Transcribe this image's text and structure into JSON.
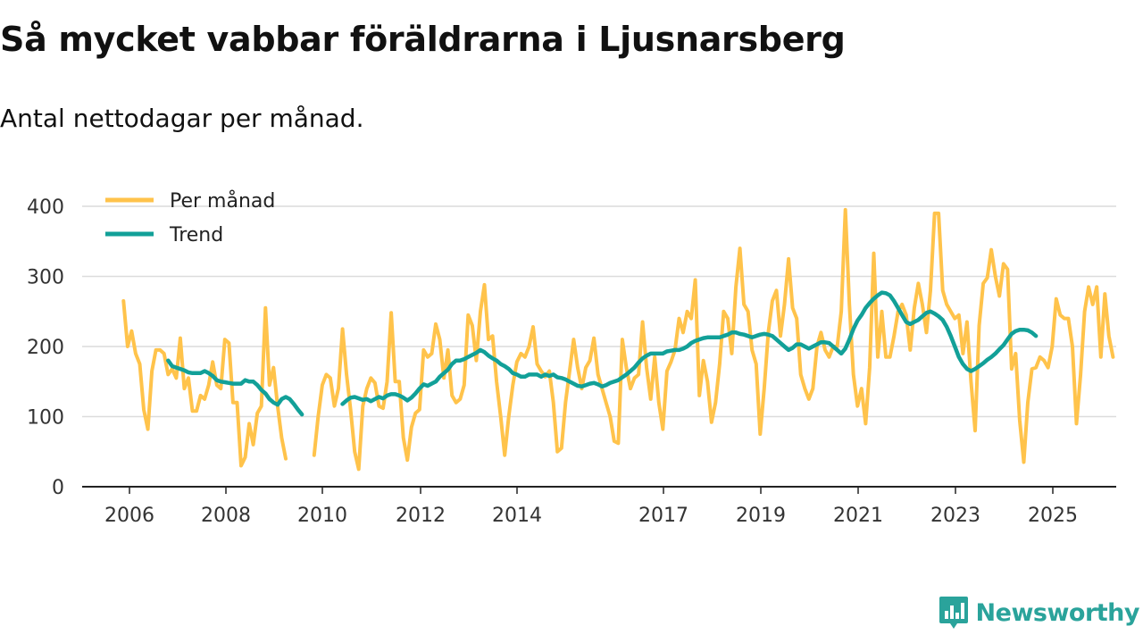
{
  "chart_data": {
    "type": "line",
    "title": "Så mycket vabbar föräldrarna i Ljusnarsberg",
    "subtitle": "Antal nettodagar per månad.",
    "xlabel": "",
    "ylabel": "",
    "ylim": [
      0,
      400
    ],
    "yticks": [
      0,
      100,
      200,
      300,
      400
    ],
    "xticks": [
      "2006",
      "2008",
      "2010",
      "2012",
      "2014",
      "2017",
      "2019",
      "2021",
      "2023",
      "2025"
    ],
    "x_range": [
      2005.15,
      2026.4
    ],
    "grid": true,
    "legend_position": "top-left",
    "series": [
      {
        "name": "Per månad",
        "color": "#ffc34b",
        "segments": [
          {
            "start": 2006.0,
            "values": [
              265,
              200,
              222,
              190,
              175,
              110,
              82,
              165,
              195,
              195,
              190,
              160,
              168,
              155,
              212,
              140,
              155,
              108,
              108,
              130,
              125,
              145,
              178,
              145,
              140,
              210,
              205,
              120,
              120,
              30,
              42,
              90,
              60,
              105,
              115,
              255,
              145,
              170,
              115,
              70,
              40
            ]
          },
          {
            "start": 2009.917,
            "values": [
              45,
              100,
              145,
              160,
              155,
              115,
              140,
              225,
              160,
              110,
              50,
              25,
              115,
              140,
              155,
              148,
              115,
              112,
              150,
              248,
              150,
              150,
              70,
              38,
              85,
              105,
              110,
              195,
              185,
              190,
              232,
              210,
              155,
              195,
              130,
              120,
              125,
              145,
              245,
              230,
              180,
              250,
              288,
              210,
              215,
              150,
              100,
              45,
              100,
              145,
              178,
              190,
              185,
              200,
              228,
              175,
              165,
              157,
              165,
              120,
              50,
              55,
              120,
              165,
              210,
              170,
              140,
              170,
              180,
              212,
              160,
              140,
              120,
              100,
              65,
              62,
              210,
              170,
              140,
              155,
              160,
              235,
              170,
              125,
              185,
              120,
              82,
              165,
              178,
              195,
              240,
              220,
              250,
              240,
              295,
              130,
              180,
              150,
              92,
              120,
              175,
              250,
              240,
              190,
              285,
              340,
              260,
              250,
              195,
              175,
              75,
              140,
              220,
              265,
              280,
              215,
              260,
              325,
              255,
              240,
              160,
              140,
              125,
              140,
              200,
              220,
              195,
              185,
              200,
              200,
              250,
              395,
              260,
              160,
              115,
              140,
              90,
              170,
              333,
              185,
              250,
              185,
              185,
              215,
              250,
              260,
              245,
              195,
              255,
              290,
              260,
              220,
              280,
              390,
              390,
              280,
              260,
              250,
              240,
              245,
              190,
              235,
              150,
              80,
              230,
              290,
              298,
              338,
              300,
              272,
              318,
              310,
              168,
              190,
              95,
              35,
              120,
              168,
              170,
              185,
              180,
              170,
              200,
              268,
              245,
              240,
              240,
              200,
              90,
              160,
              250,
              285,
              260,
              285,
              185,
              275,
              215,
              185
            ]
          }
        ]
      },
      {
        "name": "Trend",
        "color": "#12a098",
        "segments": [
          {
            "start": 2006.917,
            "values": [
              180,
              172,
              170,
              168,
              166,
              163,
              162,
              162,
              162,
              165,
              162,
              158,
              152,
              150,
              149,
              148,
              147,
              147,
              147,
              152,
              150,
              150,
              145,
              138,
              133,
              125,
              120,
              117,
              125,
              128,
              125,
              118,
              110,
              103
            ]
          },
          {
            "start": 2010.5,
            "values": [
              118,
              123,
              127,
              128,
              126,
              124,
              125,
              122,
              125,
              128,
              126,
              130,
              132,
              132,
              130,
              127,
              123,
              127,
              133,
              140,
              146,
              144,
              147,
              150,
              157,
              162,
              167,
              175,
              180,
              180,
              182,
              185,
              188,
              191,
              195,
              192,
              187,
              183,
              180,
              175,
              172,
              168,
              162,
              160,
              157,
              157,
              160,
              160,
              160,
              157,
              160,
              158,
              160,
              156,
              155,
              153,
              150,
              147,
              144,
              143,
              145,
              147,
              148,
              146,
              143,
              145,
              148,
              150,
              152,
              156,
              160,
              165,
              170,
              177,
              183,
              187,
              190,
              190,
              190,
              190,
              193,
              194,
              195,
              195,
              197,
              200,
              205,
              208,
              210,
              212,
              213,
              213,
              213,
              213,
              215,
              217,
              220,
              220,
              218,
              217,
              215,
              213,
              215,
              217,
              218,
              217,
              215,
              210,
              205,
              200,
              195,
              198,
              203,
              203,
              200,
              197,
              200,
              203,
              206,
              206,
              205,
              200,
              195,
              190,
              197,
              210,
              225,
              237,
              245,
              255,
              262,
              268,
              273,
              277,
              276,
              273,
              265,
              255,
              245,
              235,
              232,
              235,
              238,
              243,
              248,
              250,
              247,
              243,
              238,
              228,
              215,
              200,
              185,
              175,
              168,
              165,
              168,
              172,
              176,
              181,
              185,
              190,
              196,
              202,
              210,
              218,
              222,
              224,
              224,
              223,
              220,
              215
            ]
          }
        ]
      }
    ]
  },
  "brand": {
    "name": "Newsworthy",
    "color": "#2aa39b"
  }
}
